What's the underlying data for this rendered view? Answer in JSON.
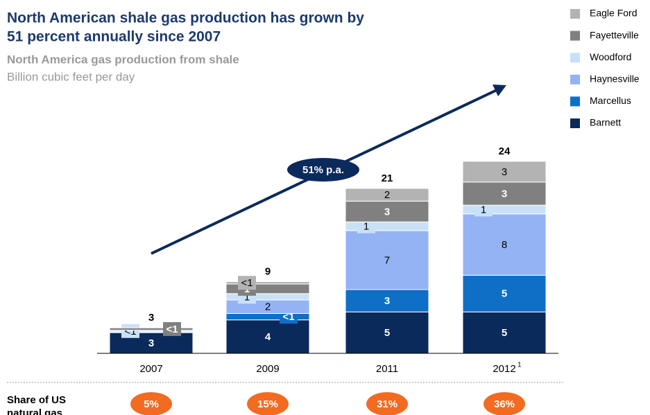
{
  "chart_data": {
    "type": "stacked_bar",
    "title_lines": [
      "North American shale gas production has grown by",
      "51 percent annually since 2007"
    ],
    "subtitle": "North America gas production from shale",
    "units": "Billion cubic feet per day",
    "categories": [
      "2007",
      "2009",
      "2011",
      "2012"
    ],
    "last_category_superscript": "1",
    "ylim": [
      0,
      24
    ],
    "series": [
      {
        "name": "Barnett",
        "color": "#0b2a5c",
        "values": [
          2.6,
          4.2,
          5.2,
          5.2
        ],
        "value_labels": [
          "3",
          "4",
          "5",
          "5"
        ]
      },
      {
        "name": "Marcellus",
        "color": "#0f6fc6",
        "values": [
          0,
          0.8,
          2.8,
          4.6
        ],
        "value_labels": [
          null,
          "<1",
          "3",
          "5"
        ]
      },
      {
        "name": "Haynesville",
        "color": "#93b3f5",
        "values": [
          0.1,
          1.7,
          7.4,
          7.7
        ],
        "value_labels": [
          null,
          "2",
          "7",
          "8"
        ]
      },
      {
        "name": "Woodford",
        "color": "#c9e1f8",
        "values": [
          0.2,
          0.8,
          1.1,
          1.1
        ],
        "value_labels": [
          "<1",
          "1",
          "1",
          "1"
        ]
      },
      {
        "name": "Fayetteville",
        "color": "#808080",
        "values": [
          0.3,
          1.2,
          2.6,
          2.9
        ],
        "value_labels": [
          "<1",
          "1",
          "3",
          "3"
        ]
      },
      {
        "name": "Eagle Ford",
        "color": "#b3b3b3",
        "values": [
          0,
          0.3,
          1.6,
          2.6
        ],
        "value_labels": [
          null,
          "<1",
          "2",
          "3"
        ]
      }
    ],
    "totals": [
      3,
      9,
      21,
      24
    ],
    "annotation": "51% p.a.",
    "share_label_lines": [
      "Share of US",
      "natural gas"
    ],
    "share_values": [
      5,
      15,
      31,
      36
    ],
    "share_value_labels": [
      "5%",
      "15%",
      "31%",
      "36%"
    ],
    "share_color": "#f26b21"
  }
}
